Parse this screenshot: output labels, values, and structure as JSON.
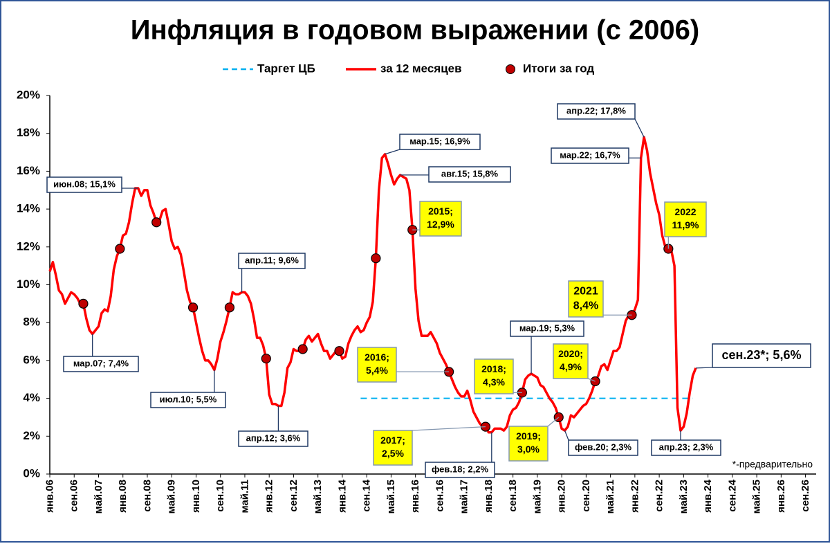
{
  "chart_data": {
    "type": "line",
    "title": "Инфляция в годовом выражении (с 2006)",
    "footnote": "*-предварительно",
    "categories": [
      "янв.06",
      null,
      null,
      null,
      null,
      null,
      null,
      null,
      "сен.06",
      null,
      null,
      null,
      null,
      null,
      null,
      null,
      "май.07",
      null,
      null,
      null,
      null,
      null,
      null,
      null,
      "янв.08",
      null,
      null,
      null,
      null,
      null,
      null,
      null,
      "сен.08",
      null,
      null,
      null,
      null,
      null,
      null,
      null,
      "май.09",
      null,
      null,
      null,
      null,
      null,
      null,
      null,
      "янв.10",
      null,
      null,
      null,
      null,
      null,
      null,
      null,
      "сен.10",
      null,
      null,
      null,
      null,
      null,
      null,
      null,
      "май.11",
      null,
      null,
      null,
      null,
      null,
      null,
      null,
      "янв.12",
      null,
      null,
      null,
      null,
      null,
      null,
      null,
      "сен.12",
      null,
      null,
      null,
      null,
      null,
      null,
      null,
      "май.13",
      null,
      null,
      null,
      null,
      null,
      null,
      null,
      "янв.14",
      null,
      null,
      null,
      null,
      null,
      null,
      null,
      "сен.14",
      null,
      null,
      null,
      null,
      null,
      null,
      null,
      "май.15",
      null,
      null,
      null,
      null,
      null,
      null,
      null,
      "янв.16",
      null,
      null,
      null,
      null,
      null,
      null,
      null,
      "сен.16",
      null,
      null,
      null,
      null,
      null,
      null,
      null,
      "май.17",
      null,
      null,
      null,
      null,
      null,
      null,
      null,
      "янв.18",
      null,
      null,
      null,
      null,
      null,
      null,
      null,
      "сен.18",
      null,
      null,
      null,
      null,
      null,
      null,
      null,
      "май.19",
      null,
      null,
      null,
      null,
      null,
      null,
      null,
      "янв.20",
      null,
      null,
      null,
      null,
      null,
      null,
      null,
      "сен.20",
      null,
      null,
      null,
      null,
      null,
      null,
      null,
      "май.21",
      null,
      null,
      null,
      null,
      null,
      null,
      null,
      "янв.22",
      null,
      null,
      null,
      null,
      null,
      null,
      null,
      "сен.22",
      null,
      null,
      null,
      null,
      null,
      null,
      null,
      "май.23",
      null,
      null,
      null,
      null,
      null,
      null,
      null,
      "янв.24",
      null,
      null,
      null,
      null,
      null,
      null,
      null,
      "сен.24",
      null,
      null,
      null,
      null,
      null,
      null,
      null,
      "май.25",
      null,
      null,
      null,
      null,
      null,
      null,
      null,
      "янв.26",
      null,
      null,
      null,
      null,
      null,
      null,
      null,
      "сен.26",
      null,
      null,
      null
    ],
    "series": [
      {
        "name": "Таргет ЦБ",
        "color": "#00b0f0",
        "style": "dashed",
        "values": [
          null,
          null,
          null,
          null,
          null,
          null,
          null,
          null,
          null,
          null,
          null,
          null,
          null,
          null,
          null,
          null,
          null,
          null,
          null,
          null,
          null,
          null,
          null,
          null,
          null,
          null,
          null,
          null,
          null,
          null,
          null,
          null,
          null,
          null,
          null,
          null,
          null,
          null,
          null,
          null,
          null,
          null,
          null,
          null,
          null,
          null,
          null,
          null,
          null,
          null,
          null,
          null,
          null,
          null,
          null,
          null,
          null,
          null,
          null,
          null,
          null,
          null,
          null,
          null,
          null,
          null,
          null,
          null,
          null,
          null,
          null,
          null,
          null,
          null,
          null,
          null,
          null,
          null,
          null,
          null,
          null,
          null,
          null,
          null,
          null,
          null,
          null,
          null,
          null,
          null,
          null,
          null,
          null,
          null,
          null,
          null,
          null,
          null,
          null,
          null,
          null,
          null,
          4,
          4,
          4,
          4,
          4,
          4,
          4,
          4,
          4,
          4,
          4,
          4,
          4,
          4,
          4,
          4,
          4,
          4,
          4,
          4,
          4,
          4,
          4,
          4,
          4,
          4,
          4,
          4,
          4,
          4,
          4,
          4,
          4,
          4,
          4,
          4,
          4,
          4,
          4,
          4,
          4,
          4,
          4,
          4,
          4,
          4,
          4,
          4,
          4,
          4,
          4,
          4,
          4,
          4,
          4,
          4,
          4,
          4,
          4,
          4,
          4,
          4,
          4,
          4,
          4,
          4,
          4,
          4,
          4,
          4,
          4,
          4,
          4,
          4,
          4,
          4,
          4,
          4,
          4,
          4,
          4,
          4,
          4,
          4,
          4,
          4,
          4,
          4,
          4,
          4,
          4,
          4,
          4,
          4,
          4,
          4,
          4,
          4,
          4,
          4,
          4,
          4,
          4,
          4,
          4,
          4,
          4,
          4,
          4,
          4,
          null,
          null,
          null,
          null,
          null,
          null,
          null,
          null,
          null,
          null,
          null,
          null,
          null,
          null,
          null,
          null,
          null,
          null,
          null,
          null,
          null,
          null,
          null,
          null,
          null,
          null,
          null,
          null,
          null,
          null,
          null,
          null,
          null,
          null,
          null,
          null,
          null,
          null,
          null,
          null
        ]
      },
      {
        "name": "за 12 месяцев",
        "color": "#ff0000",
        "style": "solid",
        "values": [
          10.7,
          11.2,
          10.5,
          9.7,
          9.5,
          9.0,
          9.3,
          9.6,
          9.5,
          9.3,
          9.0,
          9.0,
          8.2,
          7.6,
          7.4,
          7.6,
          7.8,
          8.5,
          8.7,
          8.6,
          9.4,
          10.8,
          11.5,
          11.9,
          12.6,
          12.7,
          13.3,
          14.3,
          15.1,
          15.1,
          14.7,
          15.0,
          15.0,
          14.2,
          13.8,
          13.3,
          13.4,
          13.9,
          14.0,
          13.2,
          12.3,
          11.9,
          12.0,
          11.6,
          10.7,
          9.7,
          9.1,
          8.8,
          8.0,
          7.2,
          6.5,
          6.0,
          6.0,
          5.8,
          5.5,
          6.1,
          7.0,
          7.5,
          8.1,
          8.8,
          9.6,
          9.5,
          9.5,
          9.6,
          9.6,
          9.4,
          9.0,
          8.2,
          7.2,
          7.2,
          6.8,
          6.1,
          4.2,
          3.7,
          3.7,
          3.6,
          3.6,
          4.3,
          5.6,
          5.9,
          6.6,
          6.5,
          6.5,
          6.6,
          7.1,
          7.3,
          7.0,
          7.2,
          7.4,
          6.9,
          6.5,
          6.5,
          6.1,
          6.3,
          6.5,
          6.5,
          6.1,
          6.2,
          6.9,
          7.3,
          7.6,
          7.8,
          7.5,
          7.6,
          8.0,
          8.3,
          9.1,
          11.4,
          15.0,
          16.7,
          16.9,
          16.4,
          15.8,
          15.3,
          15.6,
          15.8,
          15.7,
          15.6,
          15.0,
          12.9,
          9.8,
          8.1,
          7.3,
          7.3,
          7.3,
          7.5,
          7.2,
          6.9,
          6.4,
          6.1,
          5.8,
          5.4,
          5.0,
          4.6,
          4.3,
          4.1,
          4.1,
          4.4,
          3.9,
          3.3,
          3.0,
          2.7,
          2.5,
          2.5,
          2.2,
          2.2,
          2.4,
          2.4,
          2.4,
          2.3,
          2.5,
          3.1,
          3.4,
          3.5,
          3.8,
          4.3,
          5.0,
          5.2,
          5.3,
          5.2,
          5.1,
          4.7,
          4.6,
          4.3,
          4.0,
          3.8,
          3.5,
          3.0,
          2.4,
          2.3,
          2.5,
          3.1,
          3.0,
          3.2,
          3.4,
          3.6,
          3.7,
          4.0,
          4.4,
          4.9,
          5.2,
          5.7,
          5.8,
          5.5,
          6.0,
          6.5,
          6.5,
          6.7,
          7.4,
          8.1,
          8.4,
          8.4,
          8.7,
          9.2,
          16.7,
          17.8,
          17.1,
          15.9,
          15.1,
          14.3,
          13.7,
          12.6,
          12.0,
          11.9,
          11.8,
          11.0,
          3.5,
          2.3,
          2.5,
          3.2,
          4.3,
          5.2,
          5.6,
          null,
          null,
          null,
          null,
          null,
          null,
          null,
          null,
          null,
          null,
          null,
          null,
          null,
          null,
          null,
          null,
          null,
          null,
          null,
          null,
          null,
          null,
          null,
          null,
          null,
          null,
          null,
          null,
          null,
          null,
          null,
          null,
          null,
          null,
          null,
          null,
          null,
          null,
          null
        ]
      },
      {
        "name": "Итоги за год",
        "color": "#c00000",
        "style": "dots",
        "values": [
          null,
          null,
          null,
          null,
          null,
          null,
          null,
          null,
          null,
          null,
          null,
          9.0,
          null,
          null,
          null,
          null,
          null,
          null,
          null,
          null,
          null,
          null,
          null,
          11.9,
          null,
          null,
          null,
          null,
          null,
          null,
          null,
          null,
          null,
          null,
          null,
          13.3,
          null,
          null,
          null,
          null,
          null,
          null,
          null,
          null,
          null,
          null,
          null,
          8.8,
          null,
          null,
          null,
          null,
          null,
          null,
          null,
          null,
          null,
          null,
          null,
          8.8,
          null,
          null,
          null,
          null,
          null,
          null,
          null,
          null,
          null,
          null,
          null,
          6.1,
          null,
          null,
          null,
          null,
          null,
          null,
          null,
          null,
          null,
          null,
          null,
          6.6,
          null,
          null,
          null,
          null,
          null,
          null,
          null,
          null,
          null,
          null,
          null,
          6.5,
          null,
          null,
          null,
          null,
          null,
          null,
          null,
          null,
          null,
          null,
          null,
          11.4,
          null,
          null,
          null,
          null,
          null,
          null,
          null,
          null,
          null,
          null,
          null,
          12.9,
          null,
          null,
          null,
          null,
          null,
          null,
          null,
          null,
          null,
          null,
          null,
          5.4,
          null,
          null,
          null,
          null,
          null,
          null,
          null,
          null,
          null,
          null,
          null,
          2.5,
          null,
          null,
          null,
          null,
          null,
          null,
          null,
          null,
          null,
          null,
          null,
          4.3,
          null,
          null,
          null,
          null,
          null,
          null,
          null,
          null,
          null,
          null,
          null,
          3.0,
          null,
          null,
          null,
          null,
          null,
          null,
          null,
          null,
          null,
          null,
          null,
          4.9,
          null,
          null,
          null,
          null,
          null,
          null,
          null,
          null,
          null,
          null,
          null,
          8.4,
          null,
          null,
          null,
          null,
          null,
          null,
          null,
          null,
          null,
          null,
          null,
          11.9,
          null,
          null,
          null,
          null,
          null,
          null,
          null,
          null,
          null,
          null,
          null,
          null,
          null,
          null,
          null,
          null,
          null,
          null,
          null,
          null,
          null,
          null,
          null,
          null,
          null,
          null,
          null,
          null,
          null,
          null,
          null,
          null,
          null,
          null,
          null,
          null,
          null,
          null,
          null,
          null,
          null,
          null,
          null,
          null,
          null,
          null,
          null,
          null
        ]
      }
    ],
    "ylim": [
      0,
      20
    ],
    "yticks": [
      {
        "value": 0,
        "label": "0%"
      },
      {
        "value": 2,
        "label": "2%"
      },
      {
        "value": 4,
        "label": "4%"
      },
      {
        "value": 6,
        "label": "6%"
      },
      {
        "value": 8,
        "label": "8%"
      },
      {
        "value": 10,
        "label": "10%"
      },
      {
        "value": 12,
        "label": "12%"
      },
      {
        "value": 14,
        "label": "14%"
      },
      {
        "value": 16,
        "label": "16%"
      },
      {
        "value": 18,
        "label": "18%"
      },
      {
        "value": 20,
        "label": "20%"
      }
    ],
    "grid": false,
    "annotations": [
      {
        "lines": [
          "июн.08; 15,1%"
        ]
      },
      {
        "lines": [
          "мар.07; 7,4%"
        ]
      },
      {
        "lines": [
          "июл.10; 5,5%"
        ]
      },
      {
        "lines": [
          "апр.11; 9,6%"
        ]
      },
      {
        "lines": [
          "апр.12; 3,6%"
        ]
      },
      {
        "lines": [
          "мар.15; 16,9%"
        ]
      },
      {
        "lines": [
          "авг.15; 15,8%"
        ]
      },
      {
        "lines": [
          "2015;",
          "12,9%"
        ]
      },
      {
        "lines": [
          "2016;",
          "5,4%"
        ]
      },
      {
        "lines": [
          "2017;",
          "2,5%"
        ]
      },
      {
        "lines": [
          "фев.18; 2,2%"
        ]
      },
      {
        "lines": [
          "2018;",
          "4,3%"
        ]
      },
      {
        "lines": [
          "мар.19; 5,3%"
        ]
      },
      {
        "lines": [
          "2019;",
          "3,0%"
        ]
      },
      {
        "lines": [
          "2020;",
          "4,9%"
        ]
      },
      {
        "lines": [
          "фев.20; 2,3%"
        ]
      },
      {
        "lines": [
          "2021",
          "8,4%"
        ]
      },
      {
        "lines": [
          "апр.22; 17,8%"
        ]
      },
      {
        "lines": [
          "мар.22; 16,7%"
        ]
      },
      {
        "lines": [
          "2022",
          "11,9%"
        ]
      },
      {
        "lines": [
          "апр.23; 2,3%"
        ]
      },
      {
        "lines": [
          "сен.23*; 5,6%"
        ]
      }
    ]
  }
}
